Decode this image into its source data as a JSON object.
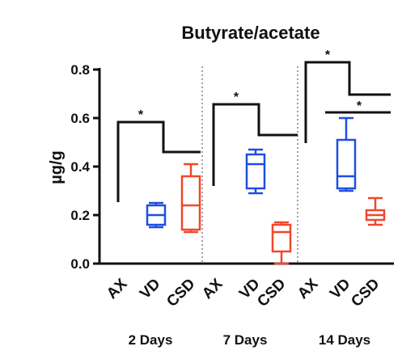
{
  "chart_data": {
    "type": "box",
    "title": "Butyrate/acetate",
    "ylabel": "µg/g",
    "xlabel": "",
    "ylim": [
      0,
      0.8
    ],
    "yticks": [
      "0.0",
      "0.2",
      "0.4",
      "0.6",
      "0.8"
    ],
    "grid": false,
    "colors": {
      "AX": "#111111",
      "VD": "#1f4fe0",
      "CSD": "#f0482a"
    },
    "groups": [
      {
        "label": "2 Days",
        "boxes": [
          {
            "category": "AX",
            "min": 0,
            "q1": 0,
            "median": 0,
            "q3": 0,
            "max": 0
          },
          {
            "category": "VD",
            "min": 0.15,
            "q1": 0.16,
            "median": 0.2,
            "q3": 0.24,
            "max": 0.25
          },
          {
            "category": "CSD",
            "min": 0.13,
            "q1": 0.14,
            "median": 0.24,
            "q3": 0.36,
            "max": 0.41
          }
        ],
        "brackets": [
          {
            "from": "AX",
            "to": "VD/CSD",
            "star": "*"
          }
        ]
      },
      {
        "label": "7 Days",
        "boxes": [
          {
            "category": "AX",
            "min": 0,
            "q1": 0,
            "median": 0,
            "q3": 0,
            "max": 0
          },
          {
            "category": "VD",
            "min": 0.29,
            "q1": 0.31,
            "median": 0.41,
            "q3": 0.45,
            "max": 0.47
          },
          {
            "category": "CSD",
            "min": 0.0,
            "q1": 0.05,
            "median": 0.13,
            "q3": 0.16,
            "max": 0.17
          }
        ],
        "brackets": [
          {
            "from": "AX",
            "to": "VD/CSD",
            "star": "*"
          }
        ]
      },
      {
        "label": "14 Days",
        "boxes": [
          {
            "category": "AX",
            "min": 0,
            "q1": 0,
            "median": 0,
            "q3": 0,
            "max": 0
          },
          {
            "category": "VD",
            "min": 0.3,
            "q1": 0.31,
            "median": 0.36,
            "q3": 0.51,
            "max": 0.6
          },
          {
            "category": "CSD",
            "min": 0.16,
            "q1": 0.18,
            "median": 0.2,
            "q3": 0.22,
            "max": 0.27
          }
        ],
        "brackets": [
          {
            "from": "AX",
            "to": "VD/CSD",
            "star": "*"
          },
          {
            "from": "VD",
            "to": "CSD",
            "star": "*"
          }
        ]
      }
    ]
  }
}
